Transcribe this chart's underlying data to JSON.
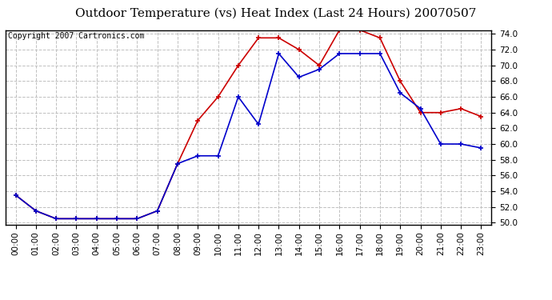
{
  "title": "Outdoor Temperature (vs) Heat Index (Last 24 Hours) 20070507",
  "copyright": "Copyright 2007 Cartronics.com",
  "hours": [
    "00:00",
    "01:00",
    "02:00",
    "03:00",
    "04:00",
    "05:00",
    "06:00",
    "07:00",
    "08:00",
    "09:00",
    "10:00",
    "11:00",
    "12:00",
    "13:00",
    "14:00",
    "15:00",
    "16:00",
    "17:00",
    "18:00",
    "19:00",
    "20:00",
    "21:00",
    "22:00",
    "23:00"
  ],
  "temp": [
    53.5,
    51.5,
    50.5,
    50.5,
    50.5,
    50.5,
    50.5,
    51.5,
    57.5,
    63.0,
    66.0,
    70.0,
    73.5,
    73.5,
    72.0,
    70.0,
    74.5,
    74.5,
    73.5,
    68.0,
    64.0,
    64.0,
    64.5,
    63.5
  ],
  "heat_index": [
    53.5,
    51.5,
    50.5,
    50.5,
    50.5,
    50.5,
    50.5,
    51.5,
    57.5,
    58.5,
    58.5,
    66.0,
    62.5,
    71.5,
    68.5,
    69.5,
    71.5,
    71.5,
    71.5,
    66.5,
    64.5,
    60.0,
    60.0,
    59.5
  ],
  "temp_color": "#cc0000",
  "heat_index_color": "#0000cc",
  "ylim_min": 50.0,
  "ylim_max": 74.0,
  "bg_color": "#ffffff",
  "plot_bg_color": "#ffffff",
  "grid_color": "#c0c0c0",
  "grid_style": "--",
  "title_fontsize": 11,
  "copyright_fontsize": 7,
  "tick_fontsize": 7.5,
  "marker": "+",
  "marker_size": 5,
  "line_width": 1.2
}
